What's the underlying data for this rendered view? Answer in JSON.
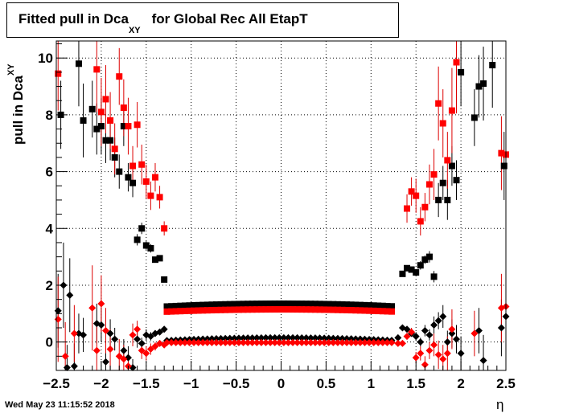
{
  "title": {
    "main": "Fitted pull in Dca",
    "sub": "XY",
    "rest": "for Global Rec All EtapT"
  },
  "ylabel": {
    "main": "pull in Dca",
    "sub": "XY"
  },
  "xlabel": "η",
  "timestamp": "Wed May 23 11:15:52 2018",
  "colors": {
    "series1": "#000000",
    "series2": "#ff0000",
    "errbar2": "#dd0000"
  },
  "chart_data": {
    "type": "scatter",
    "xlim": [
      -2.5,
      2.5
    ],
    "ylim": [
      -1,
      10.6
    ],
    "grid": true,
    "x_ticks": [
      -2.5,
      -2,
      -1.5,
      -1,
      -0.5,
      0,
      0.5,
      1,
      1.5,
      2,
      2.5
    ],
    "x_tick_labels": [
      "−2.5",
      "−2",
      "−1.5",
      "−1",
      "−0.5",
      "0",
      "0.5",
      "1",
      "1.5",
      "2",
      "2.5"
    ],
    "y_ticks": [
      0,
      2,
      4,
      6,
      8,
      10
    ],
    "y_tick_labels": [
      "0",
      "2",
      "4",
      "6",
      "8",
      "10"
    ],
    "series": [
      {
        "color": "black",
        "marker": "square",
        "points": [
          [
            -2.45,
            8.0,
            1.2
          ],
          [
            -2.25,
            9.8,
            1.5
          ],
          [
            -2.2,
            7.8,
            1.3
          ],
          [
            -2.1,
            8.2,
            1.0
          ],
          [
            -2.05,
            7.5,
            0.9
          ],
          [
            -2.0,
            7.6,
            1.0
          ],
          [
            -1.95,
            7.1,
            0.8
          ],
          [
            -1.9,
            7.1,
            0.7
          ],
          [
            -1.85,
            6.5,
            0.7
          ],
          [
            -1.8,
            6.0,
            0.6
          ],
          [
            -1.75,
            7.6,
            0.7
          ],
          [
            -1.7,
            5.8,
            0.5
          ],
          [
            -1.65,
            5.6,
            0.5
          ],
          [
            -1.6,
            3.6,
            0.2
          ],
          [
            -1.55,
            4.0,
            0.2
          ],
          [
            -1.5,
            3.4,
            0.15
          ],
          [
            -1.45,
            3.3,
            0.15
          ],
          [
            -1.4,
            2.9,
            0.1
          ],
          [
            -1.35,
            2.95,
            0.1
          ],
          [
            -1.3,
            2.2,
            0.08
          ],
          [
            1.35,
            2.4,
            0.1
          ],
          [
            1.4,
            2.6,
            0.1
          ],
          [
            1.45,
            2.55,
            0.1
          ],
          [
            1.5,
            2.45,
            0.1
          ],
          [
            1.55,
            2.7,
            0.15
          ],
          [
            1.6,
            2.9,
            0.15
          ],
          [
            1.65,
            3.0,
            0.2
          ],
          [
            1.7,
            2.3,
            0.2
          ],
          [
            1.75,
            5.0,
            0.6
          ],
          [
            1.8,
            5.6,
            0.6
          ],
          [
            1.85,
            5.0,
            0.7
          ],
          [
            1.9,
            6.2,
            0.7
          ],
          [
            1.95,
            5.7,
            0.7
          ],
          [
            2.0,
            9.5,
            1.2
          ],
          [
            2.15,
            7.9,
            1.0
          ],
          [
            2.2,
            9.0,
            1.1
          ],
          [
            2.25,
            9.1,
            1.3
          ],
          [
            2.35,
            9.75,
            1.5
          ],
          [
            2.48,
            6.2,
            1.2
          ]
        ]
      },
      {
        "color": "red",
        "marker": "square",
        "points": [
          [
            -2.48,
            9.45,
            1.3
          ],
          [
            -2.05,
            9.6,
            1.5
          ],
          [
            -2.0,
            8.1,
            1.2
          ],
          [
            -1.95,
            8.55,
            1.2
          ],
          [
            -1.9,
            7.8,
            1.0
          ],
          [
            -1.85,
            6.8,
            0.9
          ],
          [
            -1.8,
            9.35,
            1.0
          ],
          [
            -1.75,
            8.25,
            1.0
          ],
          [
            -1.7,
            7.6,
            1.0
          ],
          [
            -1.65,
            6.2,
            0.7
          ],
          [
            -1.6,
            7.65,
            0.8
          ],
          [
            -1.55,
            6.25,
            0.7
          ],
          [
            -1.5,
            5.65,
            0.6
          ],
          [
            -1.45,
            5.15,
            0.5
          ],
          [
            -1.4,
            5.8,
            0.5
          ],
          [
            -1.35,
            5.1,
            0.4
          ],
          [
            -1.3,
            4.0,
            0.25
          ],
          [
            1.4,
            4.7,
            0.5
          ],
          [
            1.45,
            5.3,
            0.5
          ],
          [
            1.5,
            5.15,
            0.6
          ],
          [
            1.55,
            4.25,
            0.5
          ],
          [
            1.6,
            4.75,
            0.5
          ],
          [
            1.65,
            5.55,
            0.7
          ],
          [
            1.7,
            5.9,
            0.9
          ],
          [
            1.75,
            8.4,
            1.3
          ],
          [
            1.8,
            7.7,
            1.2
          ],
          [
            1.85,
            6.4,
            1.0
          ],
          [
            1.9,
            8.15,
            1.5
          ],
          [
            1.95,
            9.85,
            1.8
          ],
          [
            2.45,
            6.65,
            1.3
          ],
          [
            2.5,
            6.6,
            1.3
          ]
        ]
      },
      {
        "color": "black",
        "marker": "diamond",
        "points": [
          [
            -2.48,
            1.1,
            1.3
          ],
          [
            -2.42,
            2.0,
            1.5
          ],
          [
            -2.38,
            -0.9,
            0.8
          ],
          [
            -2.35,
            1.65,
            1.3
          ],
          [
            -2.3,
            -0.85,
            0.8
          ],
          [
            -2.25,
            0.3,
            0.7
          ],
          [
            -2.2,
            0.25,
            0.6
          ],
          [
            -2.05,
            0.65,
            0.7
          ],
          [
            -2.0,
            0.6,
            0.6
          ],
          [
            -1.95,
            -0.7,
            0.5
          ],
          [
            -1.9,
            0.3,
            0.5
          ],
          [
            -1.85,
            0.1,
            0.4
          ],
          [
            -1.75,
            -0.3,
            0.4
          ],
          [
            -1.7,
            -0.55,
            0.4
          ],
          [
            -1.65,
            -0.9,
            0.3
          ],
          [
            -1.6,
            0.1,
            0.3
          ],
          [
            -1.55,
            -0.05,
            0.2
          ],
          [
            -1.5,
            0.25,
            0.2
          ],
          [
            -1.45,
            0.2,
            0.15
          ],
          [
            -1.4,
            0.3,
            0.1
          ],
          [
            -1.35,
            0.35,
            0.1
          ],
          [
            -1.3,
            0.45,
            0.08
          ],
          [
            1.3,
            0.15,
            0.08
          ],
          [
            1.35,
            0.5,
            0.1
          ],
          [
            1.4,
            0.45,
            0.1
          ],
          [
            1.45,
            0.3,
            0.1
          ],
          [
            1.5,
            0.2,
            0.15
          ],
          [
            1.55,
            0.0,
            0.15
          ],
          [
            1.6,
            0.4,
            0.2
          ],
          [
            1.65,
            0.25,
            0.2
          ],
          [
            1.7,
            0.6,
            0.3
          ],
          [
            1.75,
            0.75,
            0.3
          ],
          [
            1.8,
            0.9,
            0.4
          ],
          [
            1.85,
            0.0,
            0.4
          ],
          [
            1.9,
            0.3,
            0.5
          ],
          [
            1.95,
            0.1,
            0.5
          ],
          [
            2.0,
            -0.4,
            0.6
          ],
          [
            2.2,
            0.4,
            0.8
          ],
          [
            2.25,
            -0.65,
            0.9
          ],
          [
            2.45,
            0.5,
            1.0
          ],
          [
            2.5,
            0.9,
            1.0
          ]
        ]
      },
      {
        "color": "red",
        "marker": "diamond",
        "points": [
          [
            -2.48,
            0.8,
            1.5
          ],
          [
            -2.4,
            -0.5,
            1.2
          ],
          [
            -2.3,
            0.3,
            1.0
          ],
          [
            -2.1,
            1.2,
            1.5
          ],
          [
            -2.05,
            -0.3,
            1.0
          ],
          [
            -2.0,
            1.35,
            1.0
          ],
          [
            -1.95,
            0.4,
            0.8
          ],
          [
            -1.9,
            -0.25,
            0.7
          ],
          [
            -1.8,
            -0.5,
            0.6
          ],
          [
            -1.75,
            -0.6,
            0.5
          ],
          [
            -1.7,
            -0.85,
            0.4
          ],
          [
            -1.65,
            0.25,
            0.4
          ],
          [
            -1.6,
            0.45,
            0.3
          ],
          [
            -1.55,
            -0.3,
            0.3
          ],
          [
            -1.5,
            -0.4,
            0.25
          ],
          [
            -1.45,
            -0.25,
            0.2
          ],
          [
            -1.4,
            -0.15,
            0.15
          ],
          [
            -1.35,
            -0.05,
            0.1
          ],
          [
            -1.3,
            -0.1,
            0.08
          ],
          [
            1.3,
            -0.05,
            0.08
          ],
          [
            1.35,
            -0.05,
            0.1
          ],
          [
            1.4,
            0.2,
            0.1
          ],
          [
            1.45,
            0.35,
            0.15
          ],
          [
            1.5,
            -0.55,
            0.2
          ],
          [
            1.55,
            -0.4,
            0.25
          ],
          [
            1.6,
            -0.8,
            0.3
          ],
          [
            1.65,
            -0.3,
            0.3
          ],
          [
            1.7,
            -0.1,
            0.4
          ],
          [
            1.75,
            -0.45,
            0.5
          ],
          [
            1.8,
            -0.6,
            0.5
          ],
          [
            1.85,
            -0.4,
            0.6
          ],
          [
            1.9,
            0.45,
            0.7
          ],
          [
            2.15,
            0.3,
            0.8
          ],
          [
            2.45,
            1.2,
            1.2
          ],
          [
            2.5,
            1.25,
            1.2
          ]
        ]
      }
    ],
    "central_rows": [
      {
        "color": "black",
        "marker": "square",
        "x_from": -1.27,
        "x_to": 1.27,
        "step": 0.05,
        "y_center": 1.35,
        "y_edge": 1.25
      },
      {
        "color": "red",
        "marker": "square",
        "x_from": -1.27,
        "x_to": 1.27,
        "step": 0.05,
        "y_center": 1.15,
        "y_edge": 1.07
      },
      {
        "color": "black",
        "marker": "diamond",
        "x_from": -1.27,
        "x_to": 1.27,
        "step": 0.05,
        "y_center": 0.15,
        "y_edge": 0.05
      },
      {
        "color": "red",
        "marker": "diamond",
        "x_from": -1.27,
        "x_to": 1.27,
        "step": 0.05,
        "y_center": -0.02,
        "y_edge": -0.02
      }
    ]
  }
}
